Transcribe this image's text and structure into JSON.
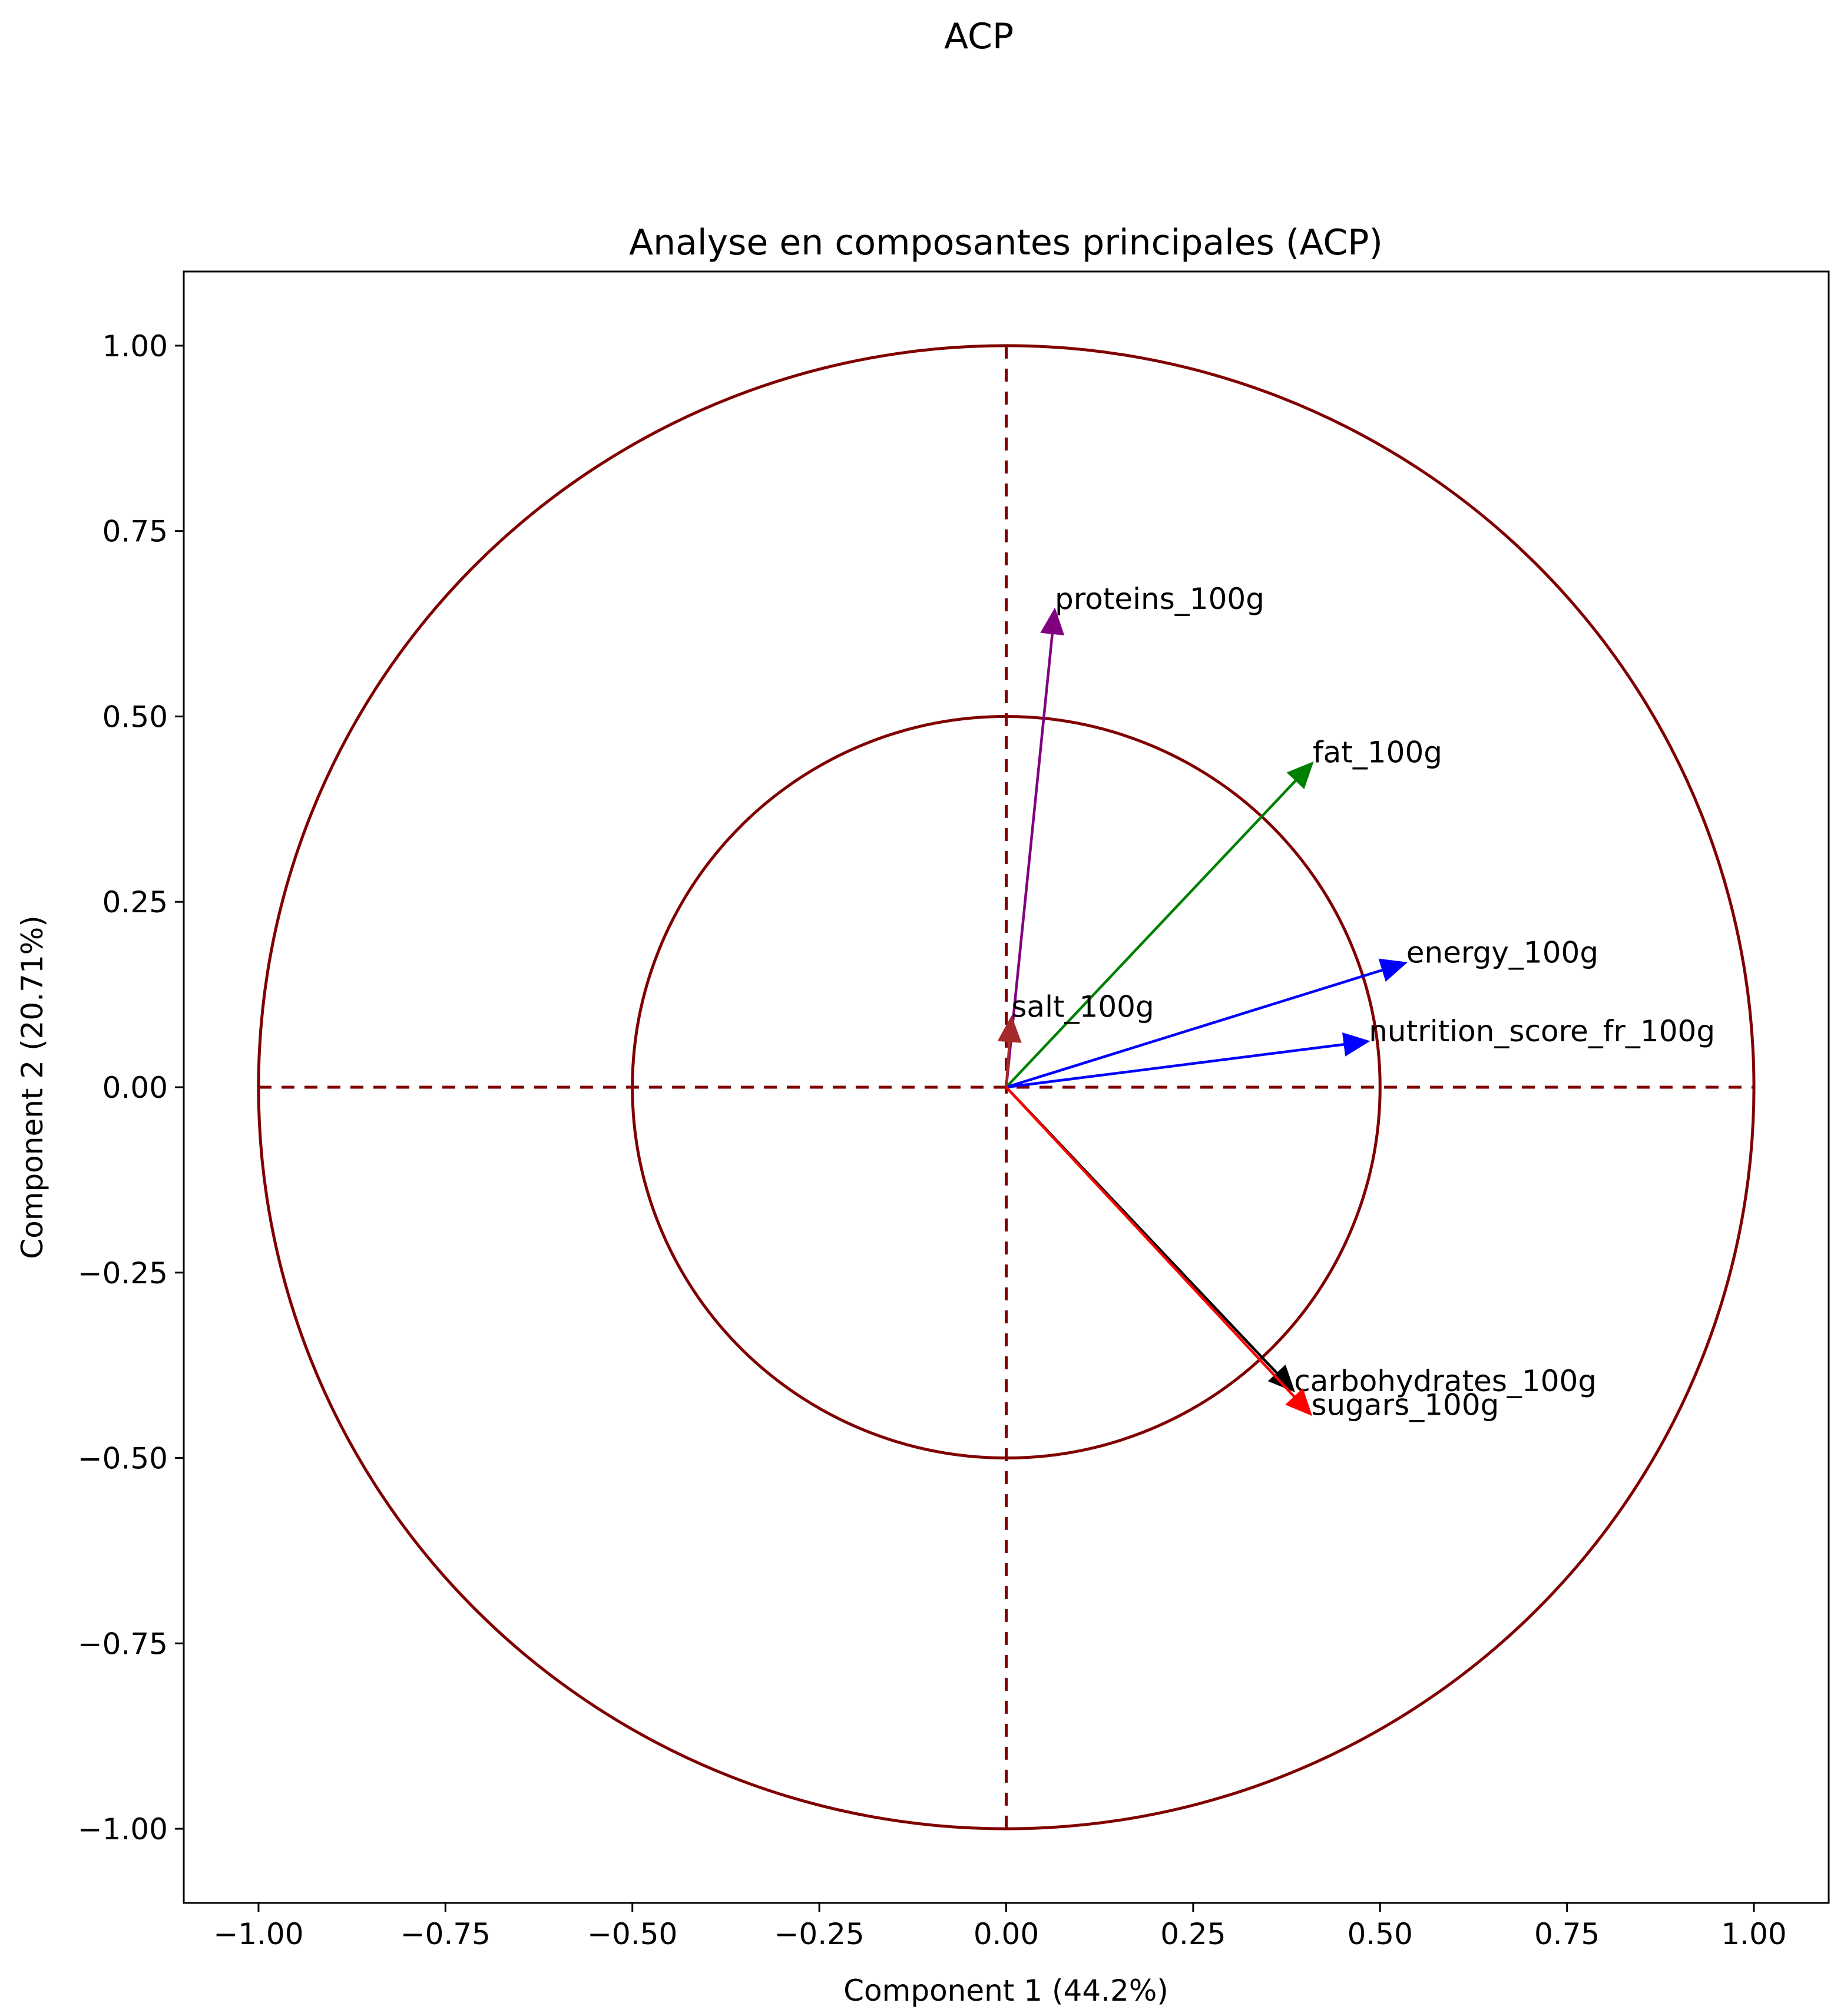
{
  "chart_data": {
    "type": "vector",
    "suptitle": "ACP",
    "title": "Analyse en composantes principales (ACP)",
    "xlabel": "Component 1 (44.2%)",
    "ylabel": "Component 2 (20.71%)",
    "xlim": [
      -1.1,
      1.1
    ],
    "ylim": [
      -1.1,
      1.1
    ],
    "xticks": [
      -1.0,
      -0.75,
      -0.5,
      -0.25,
      0.0,
      0.25,
      0.5,
      0.75,
      1.0
    ],
    "yticks": [
      -1.0,
      -0.75,
      -0.5,
      -0.25,
      0.0,
      0.25,
      0.5,
      0.75,
      1.0
    ],
    "xtick_labels": [
      "−1.00",
      "−0.75",
      "−0.50",
      "−0.25",
      "0.00",
      "0.25",
      "0.50",
      "0.75",
      "1.00"
    ],
    "ytick_labels": [
      "−1.00",
      "−0.75",
      "−0.50",
      "−0.25",
      "0.00",
      "0.25",
      "0.50",
      "0.75",
      "1.00"
    ],
    "circles": [
      {
        "radius": 1.0,
        "color": "#800000"
      },
      {
        "radius": 0.5,
        "color": "#800000"
      }
    ],
    "reference_lines_color": "#800000",
    "grid": false,
    "vectors": [
      {
        "label": "proteins_100g",
        "x": 0.065,
        "y": 0.645,
        "color": "#800080"
      },
      {
        "label": "fat_100g",
        "x": 0.41,
        "y": 0.438,
        "color": "#008000"
      },
      {
        "label": "energy_100g",
        "x": 0.535,
        "y": 0.168,
        "color": "#0000ff"
      },
      {
        "label": "nutrition_score_fr_100g",
        "x": 0.485,
        "y": 0.062,
        "color": "#0000ff"
      },
      {
        "label": "salt_100g",
        "x": 0.007,
        "y": 0.095,
        "color": "#a52a2a"
      },
      {
        "label": "carbohydrates_100g",
        "x": 0.385,
        "y": -0.41,
        "color": "#000000"
      },
      {
        "label": "sugars_100g",
        "x": 0.408,
        "y": -0.442,
        "color": "#ff0000"
      }
    ]
  }
}
